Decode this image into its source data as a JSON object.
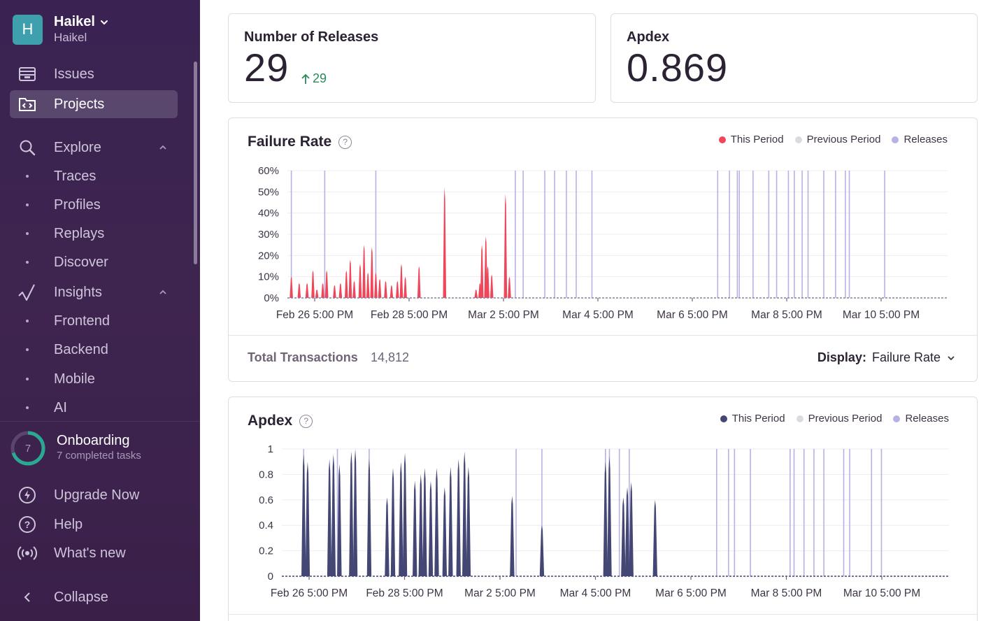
{
  "org": {
    "avatar_letter": "H",
    "name": "Haikel",
    "subtitle": "Haikel"
  },
  "nav": {
    "issues": "Issues",
    "projects": "Projects",
    "explore": "Explore",
    "explore_items": [
      "Traces",
      "Profiles",
      "Replays",
      "Discover"
    ],
    "insights": "Insights",
    "insights_items": [
      "Frontend",
      "Backend",
      "Mobile",
      "AI"
    ]
  },
  "onboarding": {
    "count": "7",
    "title": "Onboarding",
    "subtitle": "7 completed tasks",
    "progress": 0.7
  },
  "footer": {
    "upgrade": "Upgrade Now",
    "help": "Help",
    "whats_new": "What's new",
    "collapse": "Collapse"
  },
  "stats": {
    "releases": {
      "title": "Number of Releases",
      "value": "29",
      "delta": "29"
    },
    "apdex": {
      "title": "Apdex",
      "value": "0.869"
    }
  },
  "failure_chart": {
    "title": "Failure Rate",
    "legend": [
      "This Period",
      "Previous Period",
      "Releases"
    ],
    "total_label": "Total Transactions",
    "total_value": "14,812",
    "display_label": "Display:",
    "display_value": "Failure Rate"
  },
  "apdex_chart": {
    "title": "Apdex",
    "legend": [
      "This Period",
      "Previous Period",
      "Releases"
    ]
  },
  "colors": {
    "failure": "#f0465a",
    "apdex": "#444674",
    "release": "#b7b2e6",
    "previous": "#dcdadf",
    "accent": "#3fa0ad"
  },
  "chart_data": [
    {
      "type": "area",
      "name": "failure_rate",
      "title": "Failure Rate",
      "x_ticks": [
        "Feb 26 5:00 PM",
        "Feb 28 5:00 PM",
        "Mar 2 5:00 PM",
        "Mar 4 5:00 PM",
        "Mar 6 5:00 PM",
        "Mar 8 5:00 PM",
        "Mar 10 5:00 PM"
      ],
      "y_ticks": [
        "60%",
        "50%",
        "40%",
        "30%",
        "20%",
        "10%",
        "0%"
      ],
      "ylim": [
        0,
        60
      ],
      "x_range_hours": [
        0,
        336
      ],
      "spikes_hours_pct": [
        [
          2,
          10
        ],
        [
          6,
          7
        ],
        [
          10,
          7
        ],
        [
          13,
          13
        ],
        [
          15,
          4
        ],
        [
          18,
          7
        ],
        [
          20,
          13
        ],
        [
          24,
          6
        ],
        [
          27,
          7
        ],
        [
          30,
          13
        ],
        [
          32,
          18
        ],
        [
          34,
          8
        ],
        [
          37,
          16
        ],
        [
          39,
          25
        ],
        [
          41,
          12
        ],
        [
          43,
          24
        ],
        [
          45,
          12
        ],
        [
          47,
          9
        ],
        [
          50,
          8
        ],
        [
          53,
          6
        ],
        [
          56,
          8
        ],
        [
          58,
          16
        ],
        [
          60,
          10
        ],
        [
          67,
          15
        ],
        [
          80,
          52
        ],
        [
          96,
          4
        ],
        [
          98,
          7
        ],
        [
          99,
          25
        ],
        [
          101,
          29
        ],
        [
          102,
          15
        ],
        [
          104,
          11
        ],
        [
          111,
          49
        ],
        [
          113,
          10
        ]
      ],
      "releases_hours": [
        2,
        19,
        45,
        116,
        120,
        131,
        136,
        142,
        147,
        155,
        219,
        225,
        229,
        230,
        237,
        245,
        249,
        255,
        258,
        262,
        265,
        273,
        279,
        284,
        286,
        304
      ]
    },
    {
      "type": "area",
      "name": "apdex",
      "title": "Apdex",
      "x_ticks": [
        "Feb 26 5:00 PM",
        "Feb 28 5:00 PM",
        "Mar 2 5:00 PM",
        "Mar 4 5:00 PM",
        "Mar 6 5:00 PM",
        "Mar 8 5:00 PM",
        "Mar 10 5:00 PM"
      ],
      "y_ticks": [
        "1",
        "0.8",
        "0.6",
        "0.4",
        "0.2",
        "0"
      ],
      "ylim": [
        0,
        1
      ],
      "x_range_hours": [
        0,
        336
      ],
      "spikes_hours_val": [
        [
          11,
          0.96
        ],
        [
          13,
          0.9
        ],
        [
          24,
          0.92
        ],
        [
          26,
          0.96
        ],
        [
          29,
          0.88
        ],
        [
          35,
          0.98
        ],
        [
          37,
          1.0
        ],
        [
          44,
          0.92
        ],
        [
          53,
          0.62
        ],
        [
          56,
          0.85
        ],
        [
          60,
          0.9
        ],
        [
          62,
          0.97
        ],
        [
          67,
          0.75
        ],
        [
          70,
          0.8
        ],
        [
          72,
          0.85
        ],
        [
          75,
          0.75
        ],
        [
          78,
          0.85
        ],
        [
          82,
          0.7
        ],
        [
          85,
          0.86
        ],
        [
          89,
          0.92
        ],
        [
          92,
          0.98
        ],
        [
          94,
          0.86
        ],
        [
          116,
          0.63
        ],
        [
          131,
          0.4
        ],
        [
          163,
          0.9
        ],
        [
          165,
          0.94
        ],
        [
          172,
          0.62
        ],
        [
          174,
          0.7
        ],
        [
          176,
          0.74
        ],
        [
          188,
          0.6
        ]
      ],
      "releases_hours": [
        11,
        28,
        44,
        118,
        131,
        163,
        165,
        170,
        175,
        219,
        225,
        228,
        236,
        256,
        258,
        263,
        268,
        273,
        283,
        286,
        297,
        302
      ]
    }
  ]
}
